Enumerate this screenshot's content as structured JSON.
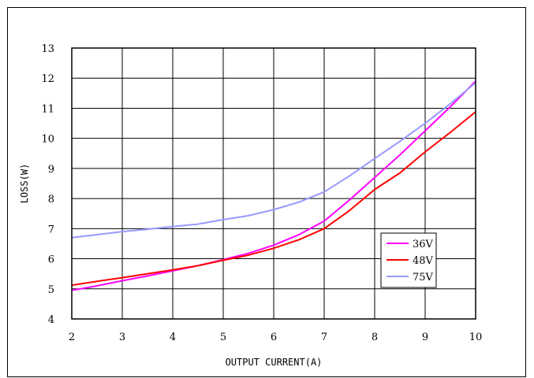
{
  "chart_data": {
    "type": "line",
    "title": "",
    "xlabel": "OUTPUT CURRENT(A)",
    "ylabel": "LOSS(W)",
    "xlim": [
      2,
      10
    ],
    "ylim": [
      4,
      13
    ],
    "xticks": [
      2,
      3,
      4,
      5,
      6,
      7,
      8,
      9,
      10
    ],
    "yticks": [
      4,
      5,
      6,
      7,
      8,
      9,
      10,
      11,
      12,
      13
    ],
    "grid": true,
    "legend_position": "bottom-right",
    "series": [
      {
        "name": "36V",
        "color": "#ff00ff",
        "x": [
          2,
          2.5,
          3,
          3.5,
          4,
          4.5,
          5,
          5.5,
          6,
          6.5,
          7,
          7.5,
          8,
          8.5,
          9,
          9.5,
          10
        ],
        "y": [
          4.95,
          5.1,
          5.27,
          5.43,
          5.6,
          5.77,
          5.97,
          6.18,
          6.45,
          6.8,
          7.25,
          7.95,
          8.7,
          9.45,
          10.25,
          11.05,
          11.9
        ]
      },
      {
        "name": "48V",
        "color": "#ff0000",
        "x": [
          2,
          2.5,
          3,
          3.5,
          4,
          4.5,
          5,
          5.5,
          6,
          6.5,
          7,
          7.5,
          8,
          8.5,
          9,
          9.5,
          10
        ],
        "y": [
          5.12,
          5.25,
          5.37,
          5.5,
          5.63,
          5.77,
          5.95,
          6.12,
          6.35,
          6.63,
          7.0,
          7.6,
          8.3,
          8.85,
          9.55,
          10.2,
          10.88
        ]
      },
      {
        "name": "75V",
        "color": "#9999ff",
        "x": [
          2,
          2.5,
          3,
          3.5,
          4,
          4.5,
          5,
          5.5,
          6,
          6.5,
          7,
          7.5,
          8,
          8.5,
          9,
          9.5,
          10
        ],
        "y": [
          6.7,
          6.8,
          6.9,
          6.98,
          7.07,
          7.15,
          7.3,
          7.43,
          7.63,
          7.88,
          8.22,
          8.75,
          9.33,
          9.9,
          10.5,
          11.15,
          11.85
        ]
      }
    ]
  }
}
